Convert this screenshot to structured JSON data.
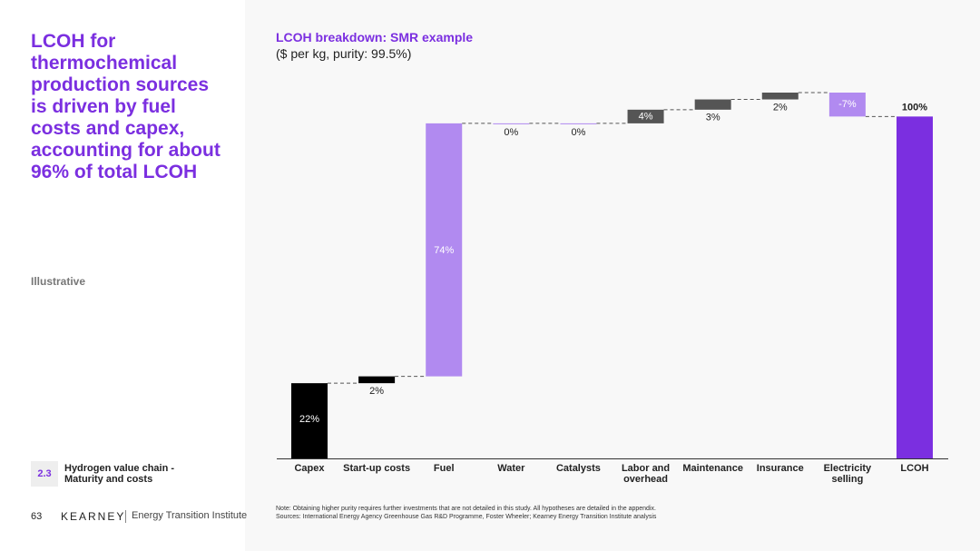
{
  "headline": "LCOH for thermochemical production sources is driven by fuel costs and capex, accounting for about 96% of total LCOH",
  "tag": "Illustrative",
  "section": {
    "number": "2.3",
    "title": "Hydrogen value chain - Maturity and costs"
  },
  "footer": {
    "page": "63",
    "brand": "KEARNEY",
    "institute": "Energy Transition Institute"
  },
  "notes": {
    "note": "Note: Obtaining higher purity requires further investments that are not detailed in this study. All hypotheses are detailed in the appendix.",
    "sources": "Sources: International Energy Agency Greenhouse Gas R&D Programme, Foster Wheeler; Kearney Energy Transition Institute analysis"
  },
  "chart_data": {
    "type": "waterfall",
    "title": "LCOH breakdown: SMR example",
    "subtitle": "($ per kg, purity: 99.5%)",
    "categories": [
      "Capex",
      "Start-up costs",
      "Fuel",
      "Water",
      "Catalysts",
      "Labor and overhead",
      "Maintenance",
      "Insurance",
      "Electricity selling",
      "LCOH"
    ],
    "values": [
      22,
      2,
      74,
      0,
      0,
      4,
      3,
      2,
      -7,
      100
    ],
    "value_labels": [
      "22%",
      "2%",
      "74%",
      "0%",
      "0%",
      "4%",
      "3%",
      "2%",
      "-7%",
      "100%"
    ],
    "colors": [
      "#000000",
      "#000000",
      "#b18af0",
      "#b18af0",
      "#b18af0",
      "#555555",
      "#555555",
      "#555555",
      "#b18af0",
      "#7b2fe0"
    ]
  }
}
